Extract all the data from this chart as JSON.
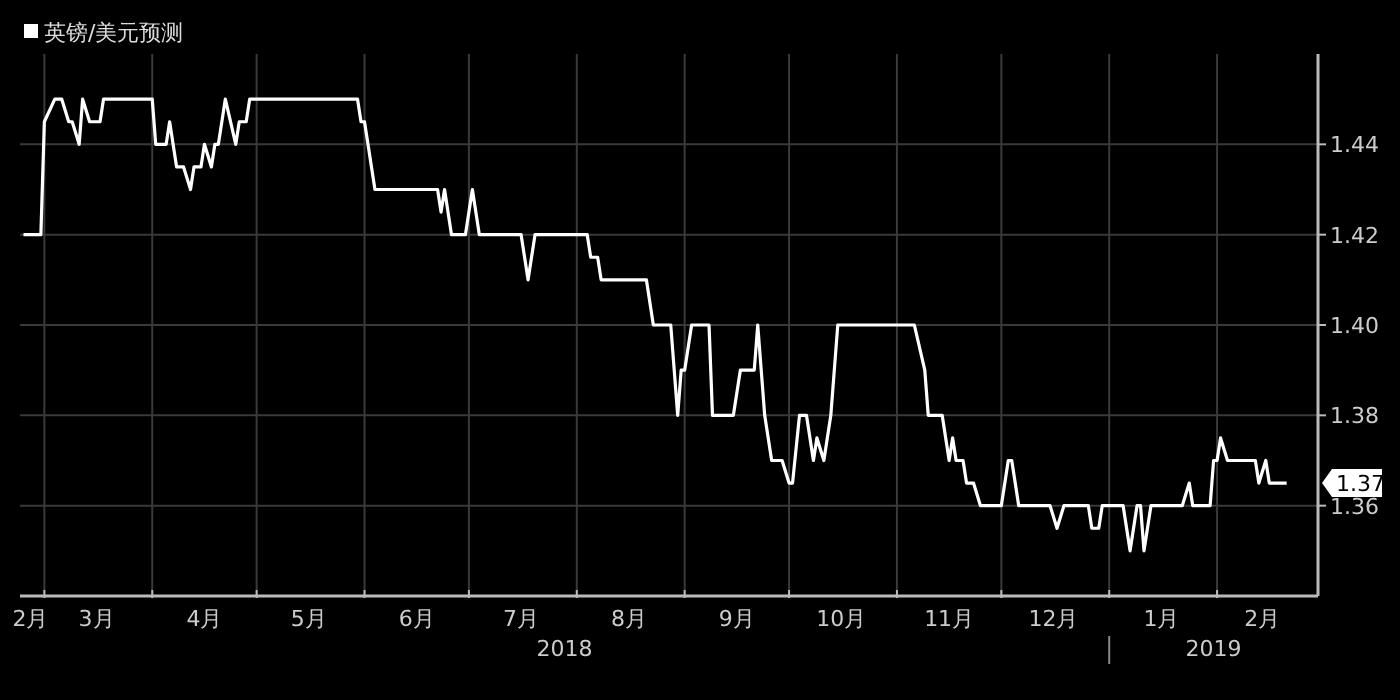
{
  "chart_data": {
    "type": "line",
    "legend": "top left",
    "grid": true,
    "line_style": "solid",
    "marker": "none",
    "xlim": [
      "2018-02-22",
      "2019-03-02"
    ],
    "ylim": [
      1.34,
      1.46
    ],
    "yticks": [
      1.36,
      1.38,
      {
        "value": 1.4,
        "label": "1.40"
      },
      1.42,
      1.44
    ],
    "xticks": [
      {
        "value": "2018-03-01",
        "label": null
      },
      {
        "value": "2018-04-01",
        "label": null
      },
      {
        "value": "2018-05-01",
        "label": null
      },
      {
        "value": "2018-06-01",
        "label": null
      },
      {
        "value": "2018-07-01",
        "label": null
      },
      {
        "value": "2018-08-01",
        "label": null
      },
      {
        "value": "2018-09-01",
        "label": null
      },
      {
        "value": "2018-10-01",
        "label": null
      },
      {
        "value": "2018-11-01",
        "label": null
      },
      {
        "value": "2018-12-01",
        "label": null
      },
      {
        "value": "2019-01-01",
        "label": null
      },
      {
        "value": "2019-02-01",
        "label": null
      },
      {
        "value": "2018-02-25",
        "label": "2月"
      },
      {
        "value": "2018-03-16",
        "label": "3月"
      },
      {
        "value": "2018-04-16",
        "label": "4月"
      },
      {
        "value": "2018-05-16",
        "label": "5月"
      },
      {
        "value": "2018-06-16",
        "label": "6月"
      },
      {
        "value": "2018-07-16",
        "label": "7月"
      },
      {
        "value": "2018-08-16",
        "label": "8月"
      },
      {
        "value": "2018-09-16",
        "label": "9月"
      },
      {
        "value": "2018-10-16",
        "label": "10月"
      },
      {
        "value": "2018-11-16",
        "label": "11月"
      },
      {
        "value": "2018-12-16",
        "label": "12月"
      },
      {
        "value": "2019-01-16",
        "label": "1月"
      },
      {
        "value": "2019-02-14",
        "label": "2月"
      }
    ],
    "annotations": [
      "2018",
      "2019",
      "1.37"
    ],
    "series": [
      {
        "name": "英镑/美元预测",
        "color": "#ffffff",
        "x": [
          "2018-02-23",
          "2018-02-28",
          "2018-03-01",
          "2018-03-04",
          "2018-03-06",
          "2018-03-08",
          "2018-03-09",
          "2018-03-11",
          "2018-03-12",
          "2018-03-14",
          "2018-03-17",
          "2018-03-18",
          "2018-04-01",
          "2018-04-02",
          "2018-04-05",
          "2018-04-06",
          "2018-04-08",
          "2018-04-10",
          "2018-04-12",
          "2018-04-13",
          "2018-04-15",
          "2018-04-16",
          "2018-04-18",
          "2018-04-19",
          "2018-04-20",
          "2018-04-22",
          "2018-04-25",
          "2018-04-26",
          "2018-04-28",
          "2018-04-29",
          "2018-05-30",
          "2018-05-31",
          "2018-06-01",
          "2018-06-02",
          "2018-06-04",
          "2018-06-22",
          "2018-06-23",
          "2018-06-24",
          "2018-06-26",
          "2018-06-30",
          "2018-07-02",
          "2018-07-04",
          "2018-07-16",
          "2018-07-18",
          "2018-07-20",
          "2018-08-04",
          "2018-08-05",
          "2018-08-07",
          "2018-08-08",
          "2018-08-21",
          "2018-08-23",
          "2018-08-28",
          "2018-08-30",
          "2018-08-31",
          "2018-09-01",
          "2018-09-03",
          "2018-09-08",
          "2018-09-09",
          "2018-09-15",
          "2018-09-17",
          "2018-09-21",
          "2018-09-22",
          "2018-09-24",
          "2018-09-26",
          "2018-09-29",
          "2018-10-01",
          "2018-10-02",
          "2018-10-04",
          "2018-10-06",
          "2018-10-08",
          "2018-10-09",
          "2018-10-11",
          "2018-10-13",
          "2018-10-15",
          "2018-11-06",
          "2018-11-09",
          "2018-11-10",
          "2018-11-14",
          "2018-11-16",
          "2018-11-17",
          "2018-11-18",
          "2018-11-20",
          "2018-11-21",
          "2018-11-23",
          "2018-11-25",
          "2018-12-01",
          "2018-12-03",
          "2018-12-04",
          "2018-12-06",
          "2018-12-15",
          "2018-12-17",
          "2018-12-19",
          "2018-12-26",
          "2018-12-27",
          "2018-12-29",
          "2018-12-30",
          "2019-01-05",
          "2019-01-07",
          "2019-01-09",
          "2019-01-10",
          "2019-01-11",
          "2019-01-13",
          "2019-01-22",
          "2019-01-24",
          "2019-01-25",
          "2019-01-30",
          "2019-01-31",
          "2019-02-01",
          "2019-02-02",
          "2019-02-04",
          "2019-02-12",
          "2019-02-13",
          "2019-02-15",
          "2019-02-16",
          "2019-02-21"
        ],
        "values": [
          1.42,
          1.42,
          1.445,
          1.45,
          1.45,
          1.445,
          1.445,
          1.44,
          1.45,
          1.445,
          1.445,
          1.45,
          1.45,
          1.44,
          1.44,
          1.445,
          1.435,
          1.435,
          1.43,
          1.435,
          1.435,
          1.44,
          1.435,
          1.44,
          1.44,
          1.45,
          1.44,
          1.445,
          1.445,
          1.45,
          1.45,
          1.445,
          1.445,
          1.44,
          1.43,
          1.43,
          1.425,
          1.43,
          1.42,
          1.42,
          1.43,
          1.42,
          1.42,
          1.41,
          1.42,
          1.42,
          1.415,
          1.415,
          1.41,
          1.41,
          1.4,
          1.4,
          1.38,
          1.39,
          1.39,
          1.4,
          1.4,
          1.38,
          1.38,
          1.39,
          1.39,
          1.4,
          1.38,
          1.37,
          1.37,
          1.365,
          1.365,
          1.38,
          1.38,
          1.37,
          1.375,
          1.37,
          1.38,
          1.4,
          1.4,
          1.39,
          1.38,
          1.38,
          1.37,
          1.375,
          1.37,
          1.37,
          1.365,
          1.365,
          1.36,
          1.36,
          1.37,
          1.37,
          1.36,
          1.36,
          1.355,
          1.36,
          1.36,
          1.355,
          1.355,
          1.36,
          1.36,
          1.35,
          1.36,
          1.36,
          1.35,
          1.36,
          1.36,
          1.365,
          1.36,
          1.36,
          1.37,
          1.37,
          1.375,
          1.37,
          1.37,
          1.365,
          1.37,
          1.365,
          1.365
        ]
      }
    ]
  }
}
